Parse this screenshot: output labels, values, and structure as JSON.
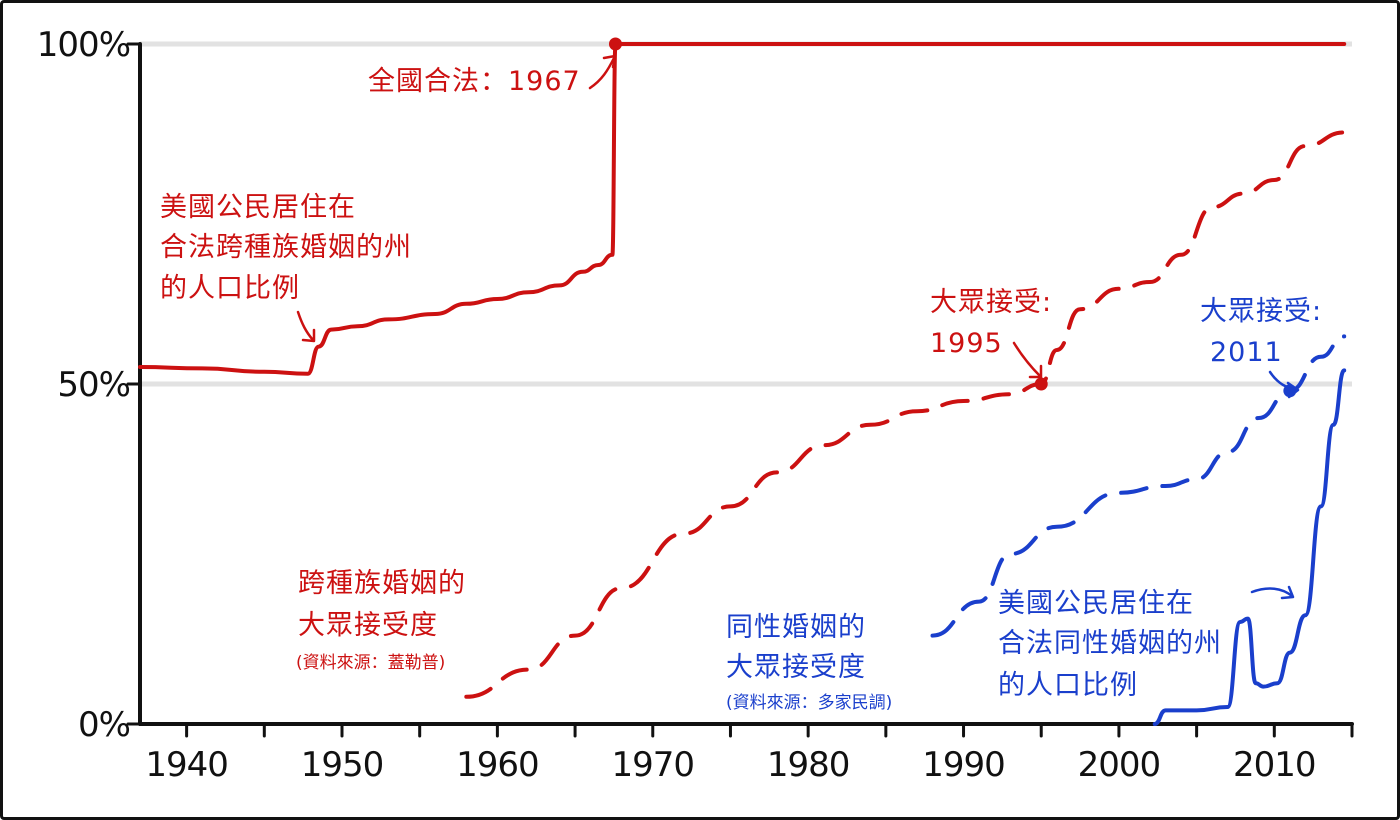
{
  "chart_data": {
    "type": "line",
    "xlim": [
      1937,
      2015
    ],
    "ylim": [
      0,
      100
    ],
    "x_ticks": [
      1940,
      1950,
      1960,
      1970,
      1980,
      1990,
      2000,
      2010
    ],
    "y_ticks": [
      0,
      50,
      100
    ],
    "x_tick_labels": [
      "1940",
      "1950",
      "1960",
      "1970",
      "1980",
      "1990",
      "2000",
      "2010"
    ],
    "y_tick_labels": [
      "0%",
      "50%",
      "100%"
    ],
    "grid": "horizontal at 50% and 100%",
    "colors": {
      "interracial": "#cc1111",
      "same_sex": "#1a3fcc",
      "grid": "#e2e2e2",
      "axis": "#111111"
    },
    "series": [
      {
        "name": "interracial-legal-states",
        "style": "solid",
        "color": "#cc1111",
        "x": [
          1937,
          1941,
          1945,
          1947.8,
          1948.5,
          1949.3,
          1951,
          1953,
          1956,
          1958,
          1960,
          1962,
          1964,
          1965.5,
          1966.5,
          1967.4,
          1967.6,
          1968,
          1975,
          1985,
          1995,
          2005,
          2014.5
        ],
        "values": [
          52.5,
          52.3,
          51.8,
          51.5,
          55.5,
          58,
          58.5,
          59.5,
          60.3,
          61.8,
          62.5,
          63.5,
          64.5,
          66.5,
          67.5,
          69,
          100,
          100,
          100,
          100,
          100,
          100,
          100
        ]
      },
      {
        "name": "interracial-approval",
        "style": "dashed",
        "color": "#cc1111",
        "x": [
          1958,
          1962,
          1965,
          1968,
          1972,
          1975,
          1978,
          1981,
          1984,
          1987,
          1990,
          1993,
          1995,
          1996,
          1997.5,
          2000,
          2002,
          2004,
          2006,
          2008,
          2010,
          2012,
          2014.5
        ],
        "values": [
          4,
          8,
          13,
          20,
          28,
          32,
          37,
          41,
          44,
          46,
          47.5,
          48.5,
          50,
          55,
          61,
          64,
          65,
          69,
          76,
          78,
          80,
          85,
          87
        ]
      },
      {
        "name": "same-sex-approval",
        "style": "dashed",
        "color": "#1a3fcc",
        "x": [
          1988,
          1991,
          1993,
          1996,
          2000,
          2003,
          2005,
          2007,
          2009,
          2011,
          2013,
          2014.5
        ],
        "values": [
          13,
          18,
          25,
          29,
          34,
          35,
          36,
          40,
          45,
          49,
          54,
          57
        ]
      },
      {
        "name": "same-sex-legal-states",
        "style": "solid",
        "color": "#1a3fcc",
        "x": [
          2002.3,
          2003,
          2005,
          2007,
          2007.8,
          2008.3,
          2008.8,
          2009.3,
          2010.2,
          2011,
          2012,
          2013,
          2013.8,
          2014.5
        ],
        "values": [
          0,
          2,
          2,
          2.5,
          15,
          15.5,
          6,
          5.5,
          6,
          10.5,
          16,
          32,
          44,
          52
        ]
      }
    ],
    "markers": [
      {
        "series": "interracial-legal-states",
        "x": 1967.6,
        "value": 100
      },
      {
        "series": "interracial-approval",
        "x": 1995,
        "value": 50
      },
      {
        "series": "same-sex-approval",
        "x": 2011,
        "value": 49
      }
    ],
    "annotations": {
      "legal_1967": "全國合法：1967",
      "interracial_states_label": [
        "美國公民居住在",
        "合法跨種族婚姻的州",
        "的人口比例"
      ],
      "interracial_approval_1995": [
        "大眾接受:",
        "1995"
      ],
      "interracial_approval_label": [
        "跨種族婚姻的",
        "大眾接受度"
      ],
      "interracial_source": "(資料來源：蓋勒普)",
      "samesex_approval_2011": [
        "大眾接受:",
        "2011"
      ],
      "samesex_approval_label": [
        "同性婚姻的",
        "大眾接受度"
      ],
      "samesex_source": "(資料來源：多家民調)",
      "samesex_states_label": [
        "美國公民居住在",
        "合法同性婚姻的州",
        "的人口比例"
      ]
    }
  }
}
